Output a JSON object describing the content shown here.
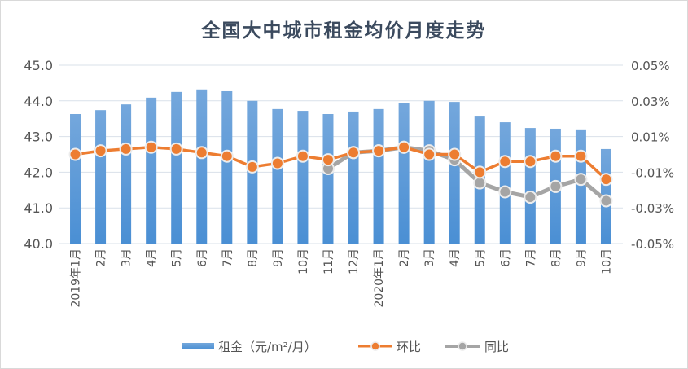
{
  "chart_data": {
    "type": "bar+line",
    "title": "全国大中城市租金均价月度走势",
    "categories": [
      "2019年1月",
      "2月",
      "3月",
      "4月",
      "5月",
      "6月",
      "7月",
      "8月",
      "9月",
      "10月",
      "11月",
      "12月",
      "2020年1月",
      "2月",
      "3月",
      "4月",
      "5月",
      "6月",
      "7月",
      "8月",
      "9月",
      "10月"
    ],
    "left_axis": {
      "ylim": [
        40.0,
        45.0
      ],
      "ticks": [
        "40.0",
        "41.0",
        "42.0",
        "43.0",
        "44.0",
        "45.0"
      ]
    },
    "right_axis": {
      "ylim": [
        -0.05,
        0.05
      ],
      "unit": "%",
      "ticks": [
        "-0.05%",
        "-0.03%",
        "-0.01%",
        "0.01%",
        "0.03%",
        "0.05%"
      ]
    },
    "grid": true,
    "legend_position": "bottom",
    "series": [
      {
        "name": "租金（元/m²/月）",
        "type": "bar",
        "axis": "left",
        "color": "#5b9bd5",
        "values": [
          43.63,
          43.74,
          43.9,
          44.09,
          44.25,
          44.32,
          44.27,
          44.0,
          43.77,
          43.72,
          43.63,
          43.7,
          43.77,
          43.95,
          44.0,
          43.97,
          43.56,
          43.4,
          43.24,
          43.22,
          43.2,
          42.65
        ]
      },
      {
        "name": "环比",
        "type": "line",
        "axis": "right",
        "color": "#ed7d31",
        "values": [
          0.0,
          0.002,
          0.003,
          0.004,
          0.003,
          0.001,
          -0.001,
          -0.007,
          -0.005,
          -0.001,
          -0.003,
          0.001,
          0.002,
          0.004,
          0.0,
          0.0,
          -0.01,
          -0.004,
          -0.004,
          -0.001,
          -0.001,
          -0.014
        ]
      },
      {
        "name": "同比",
        "type": "line",
        "axis": "right",
        "color": "#a5a5a5",
        "values": [
          null,
          null,
          null,
          null,
          null,
          null,
          null,
          null,
          null,
          null,
          -0.008,
          0.001,
          0.002,
          0.004,
          0.002,
          -0.003,
          -0.016,
          -0.021,
          -0.024,
          -0.018,
          -0.014,
          -0.026
        ]
      }
    ]
  }
}
